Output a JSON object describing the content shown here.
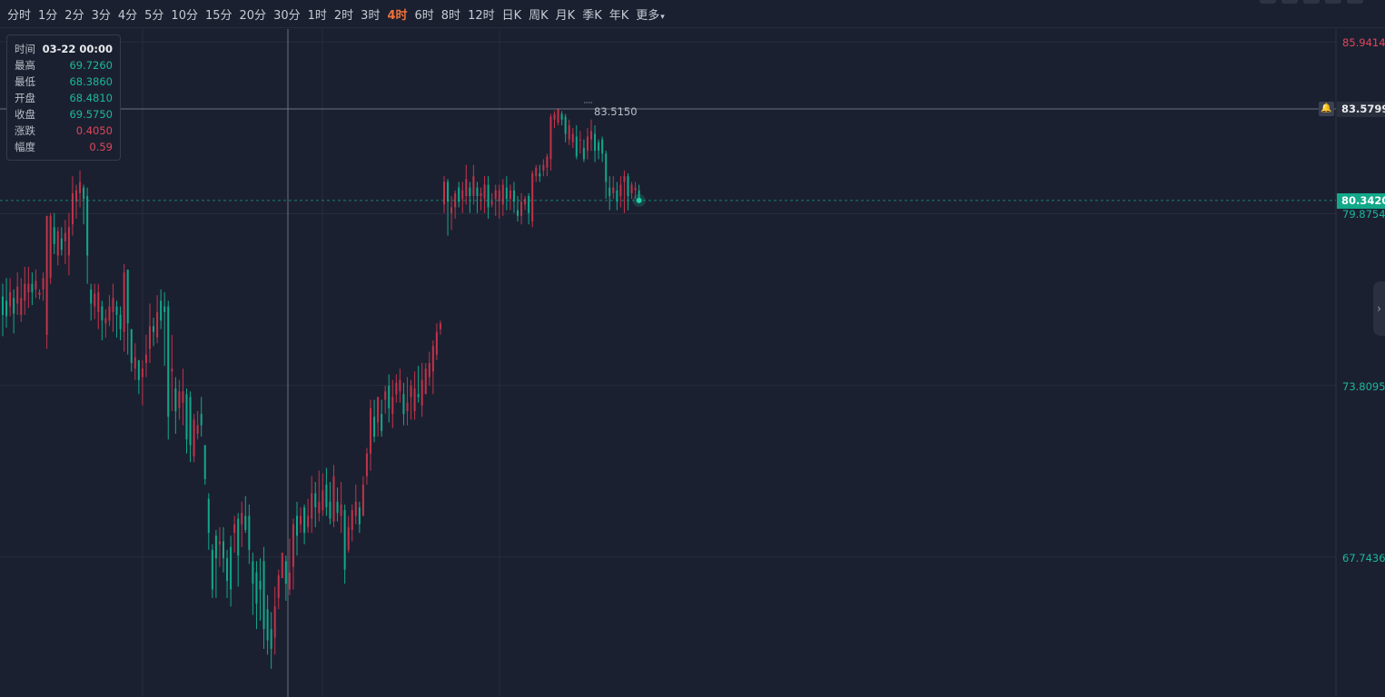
{
  "toolbar": {
    "timeframes": [
      "分时",
      "1分",
      "2分",
      "3分",
      "4分",
      "5分",
      "10分",
      "15分",
      "20分",
      "30分",
      "1时",
      "2时",
      "3时",
      "4时",
      "6时",
      "8时",
      "12时",
      "日K",
      "周K",
      "月K",
      "季K",
      "年K"
    ],
    "active": "4时",
    "more_label": "更多"
  },
  "info": {
    "rows": [
      {
        "label": "时间",
        "value": "03-22 00:00",
        "color": "#e8eaee"
      },
      {
        "label": "最高",
        "value": "69.7260",
        "color": "#1bb89a"
      },
      {
        "label": "最低",
        "value": "68.3860",
        "color": "#1bb89a"
      },
      {
        "label": "开盘",
        "value": "68.4810",
        "color": "#1bb89a"
      },
      {
        "label": "收盘",
        "value": "69.5750",
        "color": "#1bb89a"
      },
      {
        "label": "涨跌",
        "value": "0.4050",
        "color": "#e0465a"
      },
      {
        "label": "幅度",
        "value": "0.59",
        "color": "#e0465a"
      }
    ]
  },
  "axis": {
    "labels": [
      {
        "text": "85.9414",
        "color": "#e0465a",
        "value": 85.9414
      },
      {
        "text": "79.8754",
        "color": "#1bb89a",
        "value": 79.8754
      },
      {
        "text": "73.8095",
        "color": "#1bb89a",
        "value": 73.8095
      },
      {
        "text": "67.7436",
        "color": "#1bb89a",
        "value": 67.7436
      }
    ],
    "crosshair_price": "83.5799",
    "last_price": "80.3420",
    "peak_label": "83.5150"
  },
  "colors": {
    "up": "#c0334a",
    "down": "#12a88a",
    "grid": "#262c3a",
    "last_price_bg": "#12a88a"
  },
  "chart_data": {
    "type": "candlestick",
    "ylim": [
      62.8,
      86.4
    ],
    "ticks": [
      85.9414,
      79.8754,
      73.8095,
      67.7436
    ],
    "last_price": 80.342,
    "crosshair_price": 83.5799,
    "candles": [
      [
        76.95,
        76.3,
        77.4,
        75.55
      ],
      [
        76.8,
        76.25,
        77.6,
        75.85
      ],
      [
        76.6,
        77.1,
        77.6,
        76.25
      ],
      [
        76.9,
        76.35,
        77.2,
        75.65
      ],
      [
        76.7,
        77.3,
        77.8,
        76.3
      ],
      [
        76.3,
        76.9,
        77.6,
        76.05
      ],
      [
        76.8,
        77.4,
        78.0,
        76.3
      ],
      [
        77.1,
        77.4,
        78.0,
        76.55
      ],
      [
        77.4,
        77.1,
        77.8,
        76.65
      ],
      [
        77.2,
        77.5,
        77.9,
        76.9
      ],
      [
        77.0,
        77.1,
        77.2,
        76.85
      ],
      [
        77.2,
        77.6,
        77.8,
        76.8
      ],
      [
        75.6,
        79.8,
        79.8,
        75.1
      ],
      [
        77.6,
        79.8,
        79.9,
        77.4
      ],
      [
        79.4,
        78.8,
        79.9,
        78.45
      ],
      [
        78.4,
        79.25,
        79.4,
        78.05
      ],
      [
        79.0,
        78.6,
        79.4,
        78.4
      ],
      [
        78.9,
        79.2,
        79.65,
        78.1
      ],
      [
        78.4,
        79.4,
        79.9,
        77.7
      ],
      [
        79.5,
        80.6,
        81.2,
        79.1
      ],
      [
        80.3,
        80.7,
        80.9,
        79.7
      ],
      [
        80.6,
        81.0,
        81.4,
        80.1
      ],
      [
        80.8,
        80.4,
        80.9,
        79.5
      ],
      [
        80.5,
        78.4,
        80.8,
        77.4
      ],
      [
        77.2,
        76.7,
        77.4,
        76.1
      ],
      [
        76.6,
        77.05,
        77.4,
        76.15
      ],
      [
        76.4,
        77.1,
        77.4,
        75.8
      ],
      [
        76.6,
        76.1,
        76.8,
        75.4
      ],
      [
        76.0,
        76.2,
        76.5,
        75.5
      ],
      [
        76.1,
        76.6,
        77.0,
        75.9
      ],
      [
        76.4,
        76.9,
        77.4,
        75.7
      ],
      [
        76.6,
        76.3,
        76.8,
        75.5
      ],
      [
        76.3,
        75.8,
        76.6,
        75.4
      ],
      [
        75.7,
        77.8,
        78.1,
        75.0
      ],
      [
        77.9,
        76.0,
        77.9,
        74.9
      ],
      [
        75.8,
        74.6,
        75.7,
        74.3
      ],
      [
        74.4,
        74.8,
        75.3,
        74.0
      ],
      [
        74.7,
        74.0,
        74.7,
        73.5
      ],
      [
        74.1,
        74.4,
        74.7,
        73.1
      ],
      [
        74.6,
        74.9,
        75.6,
        74.1
      ],
      [
        75.1,
        75.9,
        76.7,
        74.6
      ],
      [
        75.9,
        75.7,
        76.2,
        75.2
      ],
      [
        75.5,
        76.4,
        77.0,
        75.3
      ],
      [
        76.8,
        76.1,
        77.2,
        75.8
      ],
      [
        76.6,
        76.4,
        77.1,
        74.5
      ],
      [
        76.6,
        72.7,
        76.8,
        71.9
      ],
      [
        74.3,
        74.4,
        75.6,
        72.9
      ],
      [
        73.7,
        72.9,
        74.1,
        72.1
      ],
      [
        73.0,
        73.6,
        74.0,
        72.6
      ],
      [
        73.2,
        73.6,
        74.4,
        72.4
      ],
      [
        73.5,
        71.9,
        73.7,
        71.4
      ],
      [
        73.4,
        71.7,
        73.6,
        71.1
      ],
      [
        71.3,
        72.6,
        72.8,
        71.1
      ],
      [
        72.1,
        72.4,
        72.9,
        71.9
      ],
      [
        72.8,
        72.4,
        73.4,
        72.0
      ],
      [
        71.7,
        70.5,
        71.5,
        70.3
      ],
      [
        69.8,
        68.6,
        70.0,
        68.0
      ],
      [
        68.0,
        66.6,
        68.2,
        66.3
      ],
      [
        68.5,
        67.7,
        68.7,
        66.3
      ],
      [
        68.2,
        68.3,
        68.8,
        67.4
      ],
      [
        68.3,
        67.7,
        68.8,
        67.2
      ],
      [
        67.7,
        66.9,
        68.0,
        66.3
      ],
      [
        68.1,
        66.6,
        68.5,
        66.0
      ],
      [
        68.6,
        68.9,
        69.2,
        67.9
      ],
      [
        69.1,
        67.8,
        69.3,
        66.7
      ],
      [
        68.9,
        69.3,
        69.7,
        68.1
      ],
      [
        69.2,
        68.7,
        69.9,
        68.6
      ],
      [
        69.2,
        68.0,
        69.6,
        67.5
      ],
      [
        67.6,
        66.8,
        67.9,
        65.7
      ],
      [
        67.2,
        66.1,
        67.6,
        65.2
      ],
      [
        66.9,
        66.6,
        67.7,
        65.5
      ],
      [
        67.6,
        65.2,
        68.1,
        64.5
      ],
      [
        65.9,
        64.8,
        66.4,
        64.3
      ],
      [
        65.2,
        64.5,
        65.8,
        63.8
      ],
      [
        64.9,
        66.0,
        66.7,
        64.3
      ],
      [
        66.3,
        67.1,
        67.3,
        65.9
      ],
      [
        67.0,
        67.9,
        67.6,
        67.2
      ],
      [
        67.6,
        66.8,
        67.8,
        66.2
      ],
      [
        66.6,
        67.2,
        68.4,
        66.4
      ],
      [
        67.4,
        68.9,
        69.1,
        66.6
      ],
      [
        69.2,
        68.5,
        69.7,
        67.8
      ],
      [
        68.9,
        69.2,
        69.5,
        68.6
      ],
      [
        69.5,
        68.6,
        69.6,
        68.2
      ],
      [
        68.8,
        69.2,
        69.8,
        68.6
      ],
      [
        69.1,
        70.0,
        70.6,
        68.6
      ],
      [
        70.0,
        69.5,
        70.4,
        68.8
      ],
      [
        69.3,
        69.7,
        70.8,
        69.0
      ],
      [
        69.4,
        70.1,
        70.7,
        69.2
      ],
      [
        70.3,
        69.5,
        70.9,
        69.2
      ],
      [
        69.7,
        69.1,
        70.4,
        68.9
      ],
      [
        69.0,
        70.6,
        71.0,
        68.8
      ],
      [
        69.7,
        69.3,
        70.2,
        69.0
      ],
      [
        69.2,
        69.6,
        70.4,
        68.6
      ],
      [
        69.4,
        67.3,
        69.6,
        66.8
      ],
      [
        68.0,
        68.8,
        69.2,
        67.9
      ],
      [
        68.7,
        69.4,
        69.6,
        68.3
      ],
      [
        69.2,
        69.7,
        70.3,
        68.9
      ],
      [
        69.5,
        68.9,
        69.7,
        68.6
      ],
      [
        69.2,
        70.3,
        70.6,
        69.2
      ],
      [
        70.6,
        71.4,
        71.6,
        70.3
      ],
      [
        71.4,
        73.0,
        73.3,
        70.8
      ],
      [
        72.7,
        72.0,
        73.3,
        71.8
      ],
      [
        72.5,
        73.4,
        73.3,
        72.0
      ],
      [
        72.8,
        72.2,
        73.3,
        72.0
      ],
      [
        73.3,
        73.6,
        73.8,
        72.8
      ],
      [
        73.8,
        73.0,
        74.2,
        72.5
      ],
      [
        72.8,
        73.4,
        74.0,
        72.3
      ],
      [
        73.5,
        73.9,
        74.2,
        73.2
      ],
      [
        73.6,
        74.0,
        74.4,
        73.2
      ],
      [
        73.5,
        72.8,
        73.9,
        72.4
      ],
      [
        72.9,
        73.2,
        74.1,
        72.4
      ],
      [
        73.4,
        73.8,
        74.0,
        72.6
      ],
      [
        72.9,
        73.7,
        74.3,
        72.6
      ],
      [
        73.5,
        73.4,
        74.5,
        73.2
      ],
      [
        73.1,
        74.0,
        74.6,
        72.7
      ],
      [
        73.5,
        74.4,
        74.6,
        73.9
      ],
      [
        74.1,
        74.6,
        75.0,
        73.8
      ],
      [
        74.3,
        75.2,
        75.4,
        73.5
      ],
      [
        74.9,
        75.7,
        76.0,
        74.7
      ],
      [
        75.8,
        76.0,
        76.1,
        75.6
      ],
      [
        80.2,
        81.0,
        81.2,
        79.9
      ],
      [
        81.0,
        80.3,
        81.1,
        79.1
      ],
      [
        79.9,
        80.1,
        80.5,
        79.3
      ],
      [
        80.1,
        80.6,
        80.7,
        79.7
      ],
      [
        80.8,
        80.3,
        81.0,
        80.1
      ],
      [
        80.4,
        80.7,
        81.0,
        79.9
      ],
      [
        80.5,
        81.1,
        81.6,
        80.2
      ],
      [
        80.8,
        80.5,
        81.0,
        79.9
      ],
      [
        80.5,
        81.2,
        81.6,
        80.2
      ],
      [
        80.8,
        80.5,
        81.0,
        79.9
      ],
      [
        80.5,
        80.6,
        80.8,
        80.0
      ],
      [
        80.4,
        80.9,
        81.2,
        79.9
      ],
      [
        80.9,
        80.1,
        81.2,
        79.7
      ],
      [
        80.2,
        80.3,
        80.6,
        80.1
      ],
      [
        80.4,
        80.7,
        80.9,
        79.8
      ],
      [
        80.3,
        80.7,
        80.9,
        79.7
      ],
      [
        80.2,
        80.9,
        81.1,
        79.8
      ],
      [
        80.8,
        80.4,
        81.2,
        80.0
      ],
      [
        80.4,
        80.7,
        80.9,
        80.0
      ],
      [
        80.7,
        80.3,
        81.0,
        79.9
      ],
      [
        80.0,
        79.8,
        80.5,
        79.6
      ],
      [
        79.8,
        80.3,
        80.6,
        79.5
      ],
      [
        80.2,
        80.4,
        80.5,
        80.0
      ],
      [
        80.5,
        79.9,
        80.6,
        79.5
      ],
      [
        79.6,
        81.3,
        81.4,
        79.4
      ],
      [
        81.2,
        81.5,
        81.6,
        81.0
      ],
      [
        81.3,
        81.2,
        81.6,
        81.0
      ],
      [
        81.4,
        81.6,
        81.8,
        81.2
      ],
      [
        81.5,
        81.9,
        82.0,
        81.2
      ],
      [
        81.8,
        83.3,
        83.4,
        81.4
      ],
      [
        83.2,
        83.4,
        83.5,
        82.9
      ],
      [
        83.1,
        83.6,
        83.5,
        83.0
      ],
      [
        83.4,
        83.2,
        83.5,
        83.0
      ],
      [
        83.3,
        82.7,
        83.4,
        82.4
      ],
      [
        82.5,
        83.0,
        83.2,
        82.3
      ],
      [
        82.4,
        82.7,
        82.9,
        82.2
      ],
      [
        82.6,
        81.9,
        83.0,
        81.8
      ],
      [
        82.5,
        82.5,
        82.8,
        82.0
      ],
      [
        82.2,
        81.8,
        82.5,
        81.7
      ],
      [
        82.1,
        82.6,
        82.9,
        81.8
      ],
      [
        82.5,
        82.8,
        83.2,
        82.1
      ],
      [
        82.7,
        82.1,
        83.0,
        81.7
      ],
      [
        82.4,
        82.1,
        82.5,
        81.8
      ],
      [
        82.5,
        82.0,
        82.6,
        81.7
      ],
      [
        82.0,
        81.0,
        82.1,
        80.4
      ],
      [
        80.8,
        80.5,
        81.2,
        80.0
      ],
      [
        80.6,
        80.8,
        81.2,
        80.4
      ],
      [
        80.7,
        80.3,
        81.0,
        80.0
      ],
      [
        80.5,
        80.9,
        81.2,
        80.1
      ],
      [
        81.0,
        81.2,
        81.4,
        79.9
      ],
      [
        81.2,
        80.5,
        81.3,
        80.0
      ],
      [
        80.6,
        80.9,
        81.0,
        80.4
      ],
      [
        80.7,
        80.8,
        81.0,
        80.4
      ],
      [
        80.7,
        80.34,
        80.9,
        80.3
      ]
    ]
  }
}
